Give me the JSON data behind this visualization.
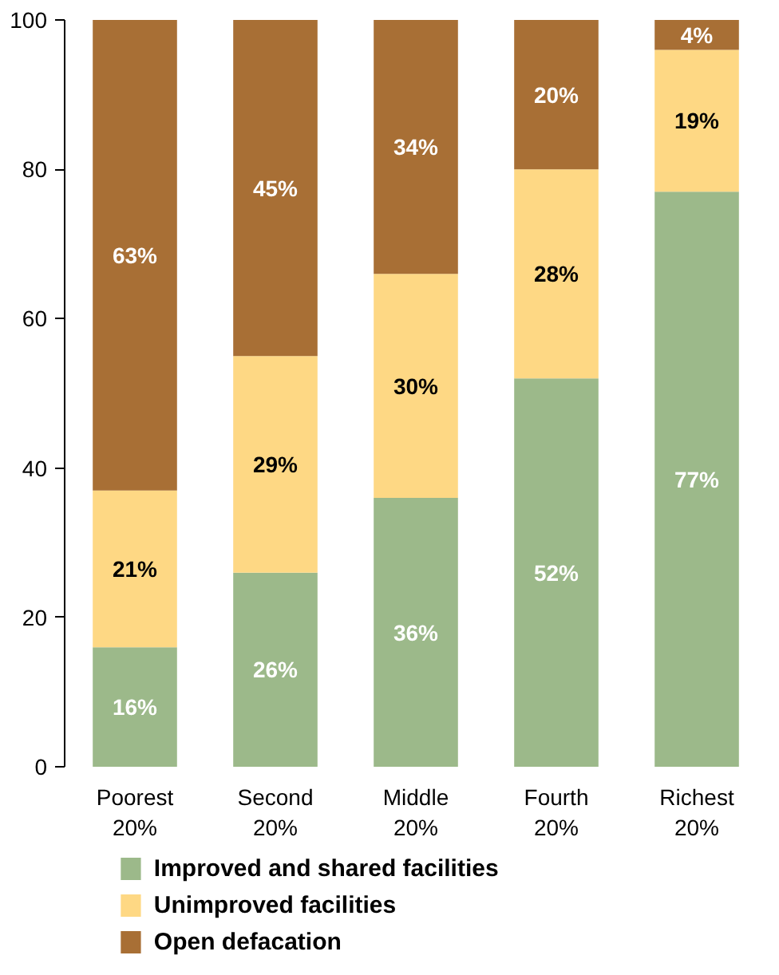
{
  "chart_data": {
    "type": "bar",
    "stacked": true,
    "categories": [
      "Poorest\n20%",
      "Second\n20%",
      "Middle\n20%",
      "Fourth\n20%",
      "Richest\n20%"
    ],
    "series": [
      {
        "name": "Improved and shared facilities",
        "color": "#9cb98a",
        "values": [
          16,
          26,
          36,
          52,
          77
        ],
        "value_labels": [
          "16%",
          "26%",
          "36%",
          "52%",
          "77%"
        ]
      },
      {
        "name": "Unimproved facilities",
        "color": "#fed884",
        "values": [
          21,
          29,
          30,
          28,
          19
        ],
        "value_labels": [
          "21%",
          "29%",
          "30%",
          "28%",
          "19%"
        ]
      },
      {
        "name": "Open defacation",
        "color": "#a86f35",
        "values": [
          63,
          45,
          34,
          20,
          4
        ],
        "value_labels": [
          "63%",
          "45%",
          "34%",
          "20%",
          "4%"
        ]
      }
    ],
    "ylim": [
      0,
      100
    ],
    "yticks": [
      0,
      20,
      40,
      60,
      80,
      100
    ],
    "grid": false,
    "legend": "bottom"
  }
}
